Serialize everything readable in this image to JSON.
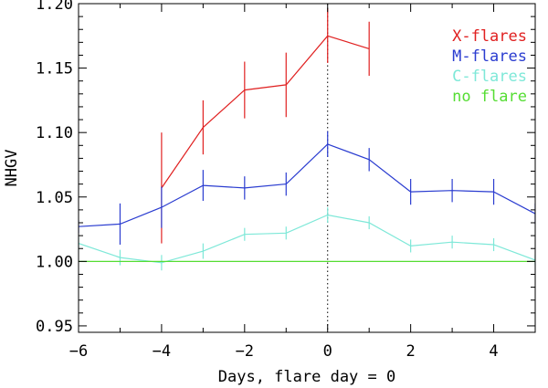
{
  "chart_data": {
    "type": "line",
    "xlabel": "Days, flare day = 0",
    "ylabel": "NHGV",
    "xlim": [
      -6,
      5
    ],
    "ylim": [
      0.945,
      1.2
    ],
    "x_ticks": [
      -6,
      -4,
      -2,
      0,
      2,
      4
    ],
    "x_tick_labels": [
      "−6",
      "−4",
      "−2",
      "0",
      "2",
      "4"
    ],
    "y_ticks": [
      0.95,
      1.0,
      1.05,
      1.1,
      1.15,
      1.2
    ],
    "y_tick_labels": [
      "0.95",
      "1.00",
      "1.05",
      "1.10",
      "1.15",
      "1.20"
    ],
    "vertical_reference": {
      "x": 0,
      "style": "dotted",
      "color": "#000000"
    },
    "legend_position": "top-right",
    "series": [
      {
        "name": "X-flares",
        "color": "#e02020",
        "x": [
          -4,
          -3,
          -2,
          -1,
          0,
          1
        ],
        "y": [
          1.057,
          1.104,
          1.133,
          1.137,
          1.175,
          1.165
        ],
        "err": [
          0.043,
          0.021,
          0.022,
          0.025,
          0.021,
          0.021
        ]
      },
      {
        "name": "M-flares",
        "color": "#2a3cd0",
        "x": [
          -6,
          -5,
          -4,
          -3,
          -2,
          -1,
          0,
          1,
          2,
          3,
          4,
          5
        ],
        "y": [
          1.027,
          1.029,
          1.042,
          1.059,
          1.057,
          1.06,
          1.091,
          1.079,
          1.054,
          1.055,
          1.054,
          1.037
        ],
        "err": [
          0.005,
          0.016,
          0.016,
          0.012,
          0.009,
          0.009,
          0.01,
          0.009,
          0.01,
          0.009,
          0.01,
          0.008
        ]
      },
      {
        "name": "C-flares",
        "color": "#7ee8d8",
        "x": [
          -6,
          -5,
          -4,
          -3,
          -2,
          -1,
          0,
          1,
          2,
          3,
          4,
          5
        ],
        "y": [
          1.014,
          1.003,
          0.999,
          1.008,
          1.021,
          1.022,
          1.036,
          1.03,
          1.012,
          1.015,
          1.013,
          1.001
        ],
        "err": [
          0.005,
          0.006,
          0.006,
          0.006,
          0.005,
          0.005,
          0.006,
          0.005,
          0.005,
          0.005,
          0.005,
          0.004
        ]
      },
      {
        "name": "no flare",
        "color": "#55dd33",
        "x": [
          -6,
          5
        ],
        "y": [
          1.0,
          1.0
        ],
        "err": null
      }
    ]
  }
}
